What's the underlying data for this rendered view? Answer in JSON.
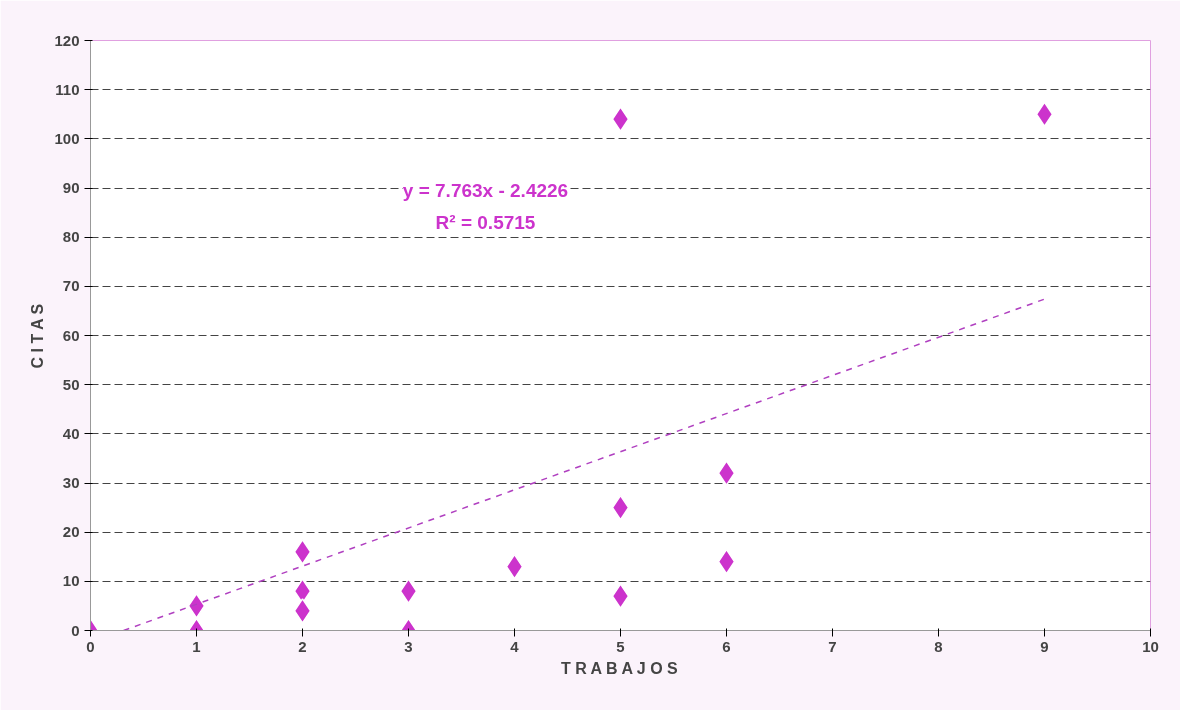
{
  "chart_data": {
    "type": "scatter",
    "xlabel": "T R A B A J O S",
    "ylabel": "C I T A S",
    "xlim": [
      0,
      10
    ],
    "xticks": [
      0,
      1,
      2,
      3,
      4,
      5,
      6,
      7,
      8,
      9,
      10
    ],
    "ylim": [
      0,
      120
    ],
    "yticks": [
      0,
      10,
      20,
      30,
      40,
      50,
      60,
      70,
      80,
      90,
      100,
      110,
      120
    ],
    "grid": "y",
    "series": [
      {
        "marker": "diamond",
        "color": "#cc33cc",
        "x": [
          0,
          1,
          1,
          2,
          2,
          2,
          3,
          3,
          4,
          5,
          5,
          5,
          6,
          6,
          9
        ],
        "values": [
          0,
          5,
          0,
          16,
          8,
          4,
          8,
          0,
          13,
          104,
          25,
          7,
          32,
          14,
          105
        ]
      },
      {
        "type": "line",
        "color": "#b040c0",
        "line_style": "dashed",
        "x": [
          0.312,
          9
        ],
        "values": [
          0,
          67.4
        ]
      }
    ],
    "annotations": [
      "y = 7.763x - 2.4226",
      "R² = 0.5715"
    ]
  }
}
